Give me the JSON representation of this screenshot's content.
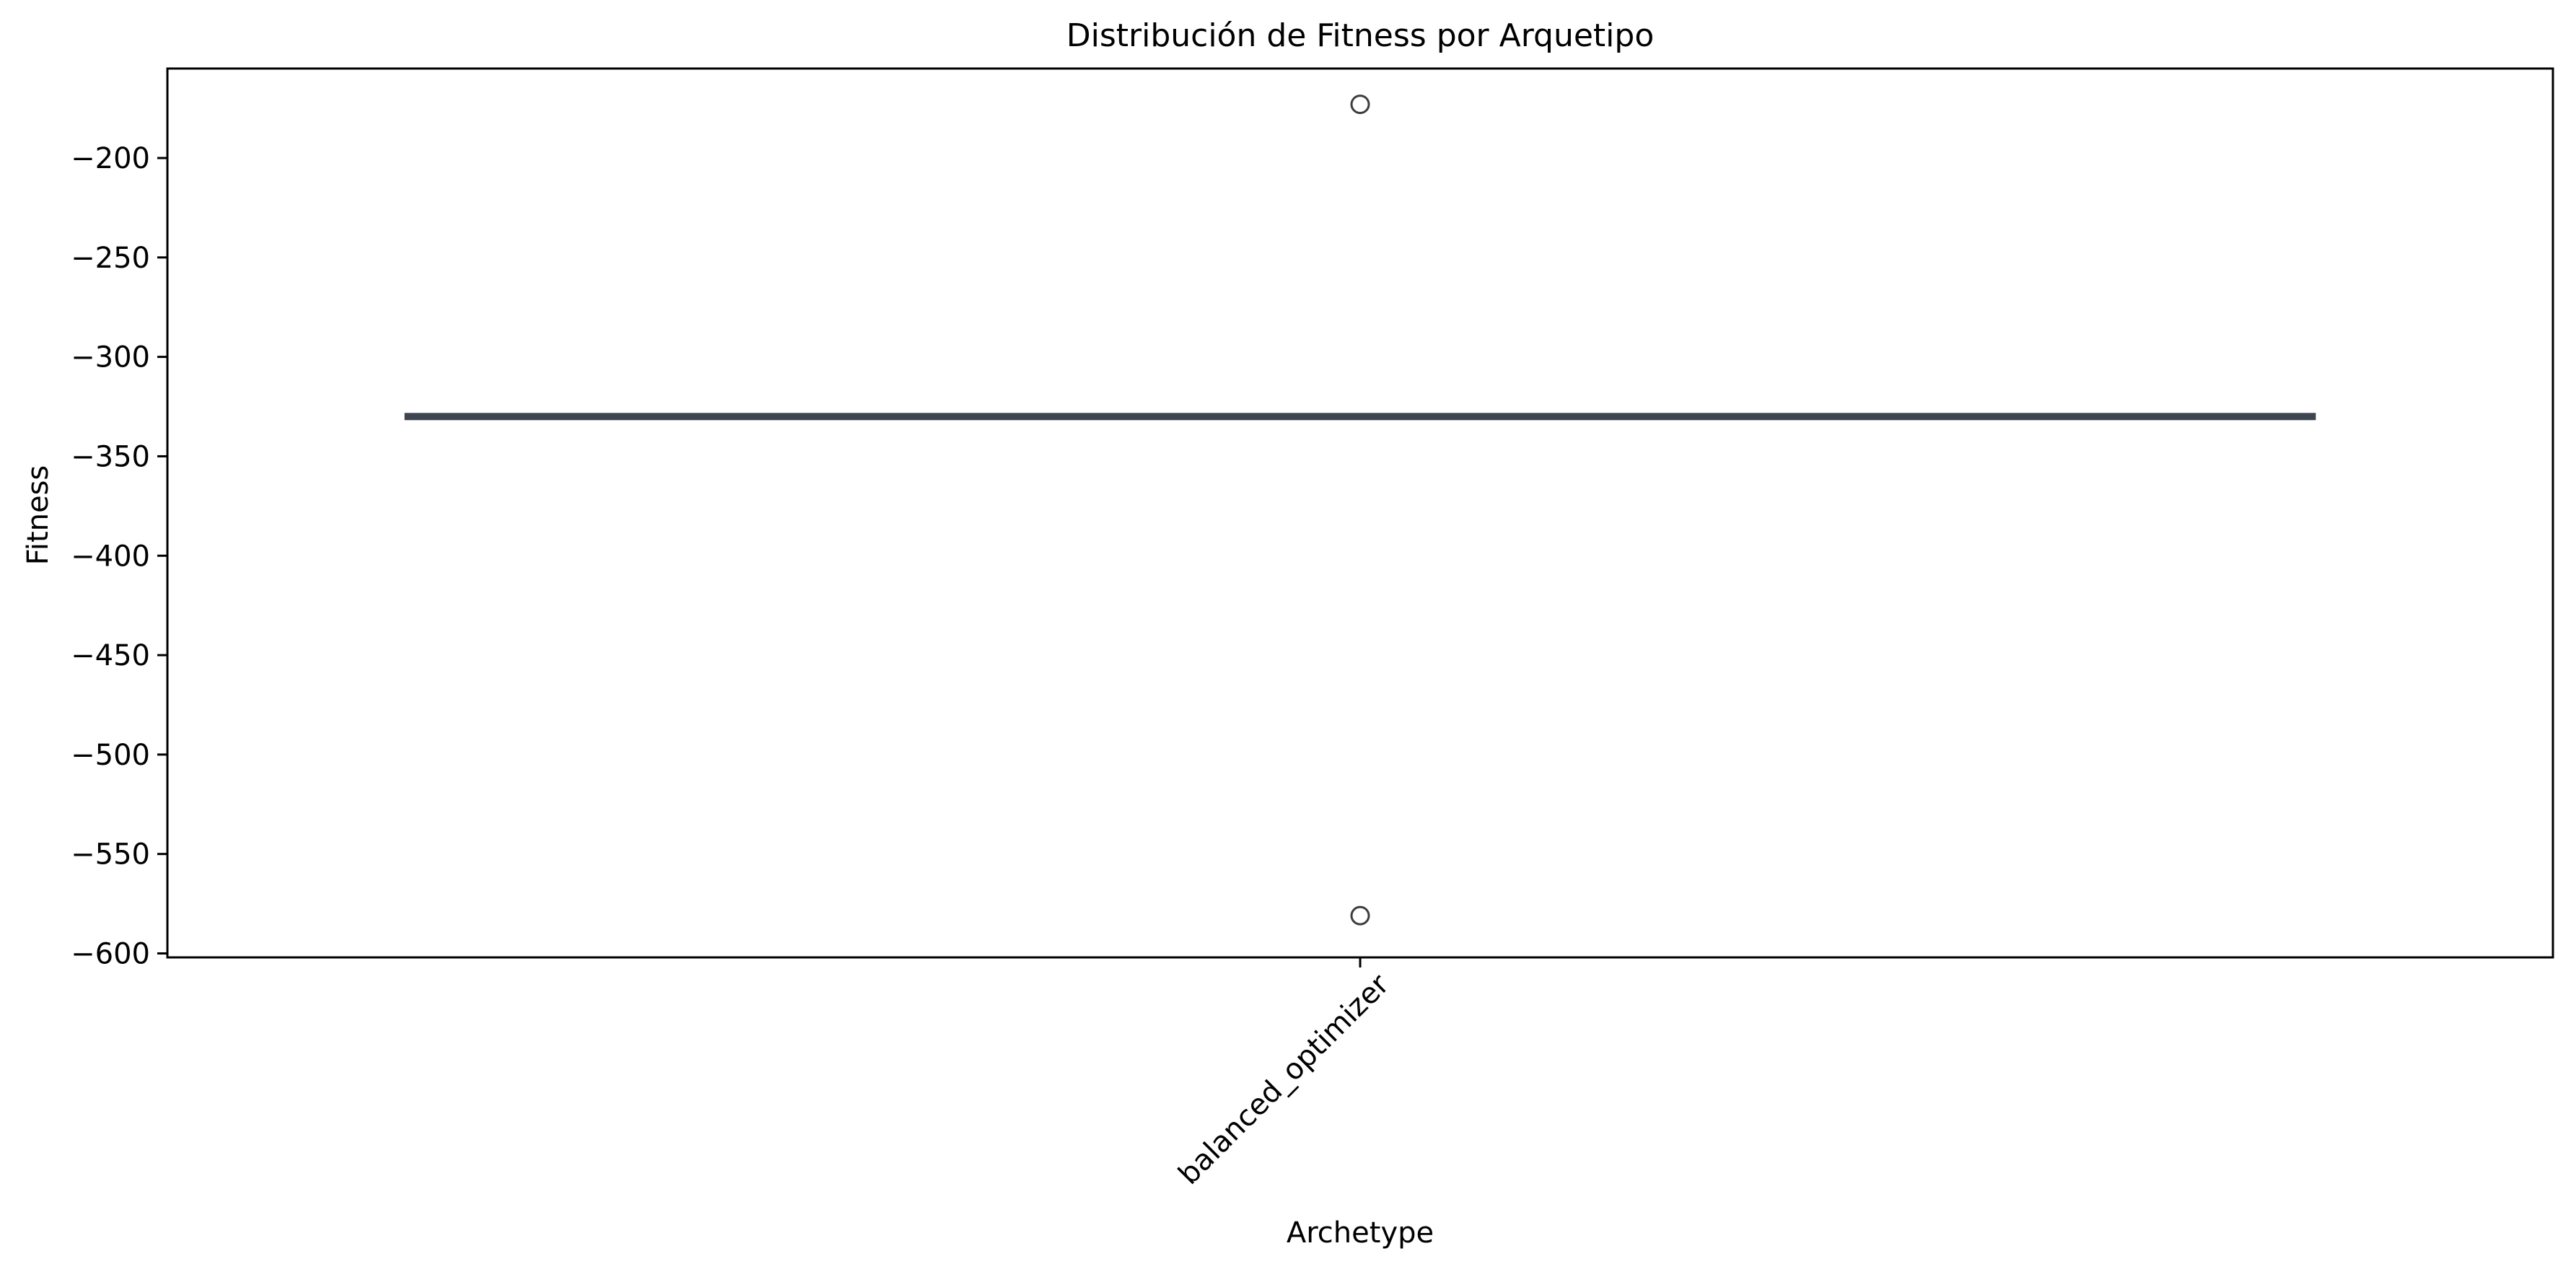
{
  "chart_data": {
    "type": "box",
    "title": "Distribución de Fitness por Arquetipo",
    "xlabel": "Archetype",
    "ylabel": "Fitness",
    "categories": [
      "balanced_optimizer"
    ],
    "ylim": [
      -602,
      -155
    ],
    "yticks": [
      -200,
      -250,
      -300,
      -350,
      -400,
      -450,
      -500,
      -550,
      -600
    ],
    "tick_labels": [
      "−200",
      "−250",
      "−300",
      "−350",
      "−400",
      "−450",
      "−500",
      "−550",
      "−600"
    ],
    "boxes": [
      {
        "category": "balanced_optimizer",
        "q1": -330,
        "median": -330,
        "q3": -330,
        "whisker_low": -330,
        "whisker_high": -330,
        "outliers": [
          -173,
          -581
        ]
      }
    ],
    "grid": false,
    "colors": {
      "box": "#3d4550",
      "outlier_edge": "#3d3d3d",
      "axis": "#000000"
    }
  }
}
